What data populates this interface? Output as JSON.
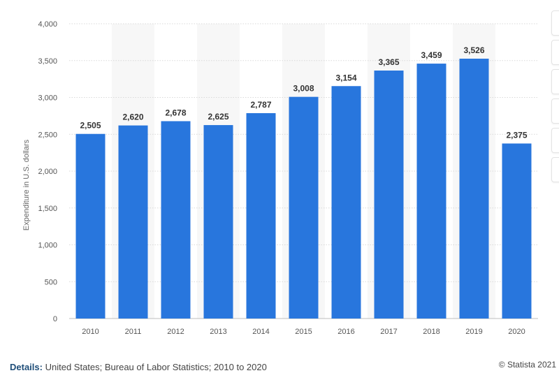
{
  "chart_data": {
    "type": "bar",
    "categories": [
      "2010",
      "2011",
      "2012",
      "2013",
      "2014",
      "2015",
      "2016",
      "2017",
      "2018",
      "2019",
      "2020"
    ],
    "values": [
      2505,
      2620,
      2678,
      2625,
      2787,
      3008,
      3154,
      3365,
      3459,
      3526,
      2375
    ],
    "value_labels": [
      "2,505",
      "2,620",
      "2,678",
      "2,625",
      "2,787",
      "3,008",
      "3,154",
      "3,365",
      "3,459",
      "3,526",
      "2,375"
    ],
    "ylabel": "Expenditure in U.S. dollars",
    "ylim": [
      0,
      4000
    ],
    "yticks": [
      0,
      500,
      1000,
      1500,
      2000,
      2500,
      3000,
      3500,
      4000
    ],
    "ytick_labels": [
      "0",
      "500",
      "1,000",
      "1,500",
      "2,000",
      "2,500",
      "3,000",
      "3,500",
      "4,000"
    ],
    "grid": true,
    "legend": "none",
    "bar_color": "#2876dd",
    "band_color": "#f7f7f7"
  },
  "footer": {
    "details_label": "Details:",
    "details_text": "United States; Bureau of Labor Statistics; 2010 to 2020",
    "copyright": "© Statista 2021"
  }
}
